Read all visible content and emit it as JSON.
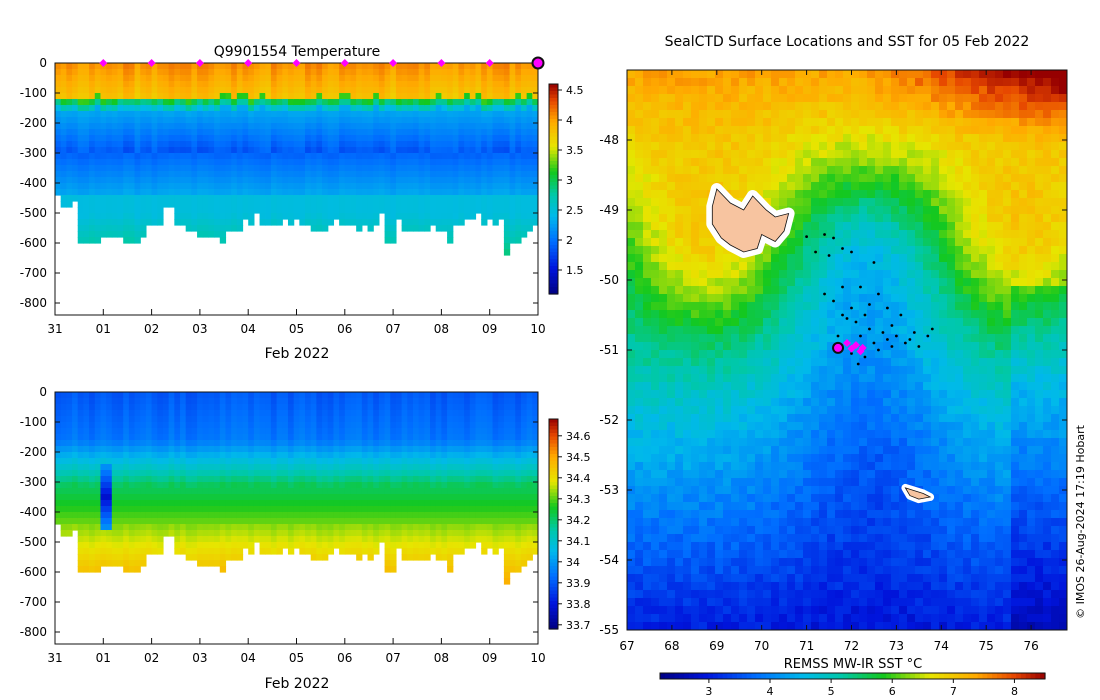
{
  "chart_data": [
    {
      "type": "heatmap",
      "id": "temperature-section",
      "title": "Q9901554  Temperature",
      "xlabel": "Feb 2022",
      "ylabel": "",
      "x_ticks": [
        "31",
        "01",
        "02",
        "03",
        "04",
        "05",
        "06",
        "07",
        "08",
        "09",
        "10"
      ],
      "x_range_days": [
        0,
        10
      ],
      "y_ticks": [
        0,
        -100,
        -200,
        -300,
        -400,
        -500,
        -600,
        -700,
        -800
      ],
      "ylim": [
        -840,
        0
      ],
      "colorbar": {
        "ticks": [
          "1.5",
          "2",
          "2.5",
          "3",
          "3.5",
          "4",
          "4.5"
        ],
        "ticks_values": [
          1.5,
          2,
          2.5,
          3,
          3.5,
          4,
          4.5
        ],
        "range": [
          1.1,
          4.6
        ]
      },
      "surface_markers_days": [
        1,
        2,
        3,
        4,
        5,
        6,
        7,
        8,
        9
      ],
      "latest_marker_day": 10,
      "profile_max_depth": [
        440,
        480,
        470,
        460,
        585,
        583,
        584,
        585,
        570,
        563,
        570,
        563,
        590,
        597,
        600,
        563,
        530,
        530,
        530,
        480,
        463,
        533,
        533,
        558,
        545,
        580,
        577,
        580,
        580,
        600,
        543,
        545,
        545,
        520,
        525,
        500,
        527,
        530,
        532,
        533,
        515,
        535,
        520,
        533,
        525,
        545,
        545,
        555,
        532,
        520,
        525,
        535,
        530,
        545,
        525,
        545,
        525,
        500,
        585,
        590,
        510,
        560,
        555,
        560,
        555,
        560,
        535,
        545,
        555,
        590,
        530,
        525,
        515,
        520,
        500,
        535,
        510,
        530,
        520,
        640,
        585,
        600,
        580,
        550,
        525
      ]
    },
    {
      "type": "heatmap",
      "id": "salinity-section",
      "title": "",
      "xlabel": "Feb 2022",
      "x_ticks": [
        "31",
        "01",
        "02",
        "03",
        "04",
        "05",
        "06",
        "07",
        "08",
        "09",
        "10"
      ],
      "y_ticks": [
        0,
        -100,
        -200,
        -300,
        -400,
        -500,
        -600,
        -700,
        -800
      ],
      "ylim": [
        -840,
        0
      ],
      "colorbar": {
        "ticks": [
          "33.7",
          "33.8",
          "33.9",
          "34",
          "34.1",
          "34.2",
          "34.3",
          "34.4",
          "34.5",
          "34.6"
        ],
        "ticks_values": [
          33.7,
          33.8,
          33.9,
          34.0,
          34.1,
          34.2,
          34.3,
          34.4,
          34.5,
          34.6
        ],
        "range": [
          33.68,
          34.68
        ]
      }
    },
    {
      "type": "heatmap",
      "id": "sst-map",
      "title": "SealCTD Surface Locations and SST for 05 Feb 2022",
      "xlabel": "REMSS MW-IR SST °C",
      "x_ticks": [
        "67",
        "68",
        "69",
        "70",
        "71",
        "72",
        "73",
        "74",
        "75",
        "76"
      ],
      "x_tick_values": [
        67,
        68,
        69,
        70,
        71,
        72,
        73,
        74,
        75,
        76
      ],
      "xlim": [
        67,
        76.8
      ],
      "y_ticks": [
        "-48",
        "-49",
        "-50",
        "-51",
        "-52",
        "-53",
        "-54",
        "-55"
      ],
      "y_tick_values": [
        -48,
        -49,
        -50,
        -51,
        -52,
        -53,
        -54,
        -55
      ],
      "ylim": [
        -55,
        -47
      ],
      "colorbar": {
        "ticks": [
          "3",
          "4",
          "5",
          "6",
          "7",
          "8"
        ],
        "ticks_values": [
          3,
          4,
          5,
          6,
          7,
          8
        ],
        "range": [
          2.2,
          8.5
        ]
      },
      "current_position": {
        "lon": 71.7,
        "lat": -50.97
      },
      "recent_positions": [
        [
          71.9,
          -50.9
        ],
        [
          72.1,
          -50.93
        ],
        [
          72.25,
          -50.97
        ],
        [
          72.0,
          -50.98
        ],
        [
          72.2,
          -51.02
        ]
      ],
      "track_points": [
        [
          71.0,
          -49.38
        ],
        [
          71.4,
          -49.35
        ],
        [
          71.6,
          -49.4
        ],
        [
          71.8,
          -49.55
        ],
        [
          71.2,
          -49.6
        ],
        [
          71.5,
          -49.65
        ],
        [
          72.0,
          -49.6
        ],
        [
          72.5,
          -49.75
        ],
        [
          71.8,
          -50.1
        ],
        [
          72.2,
          -50.1
        ],
        [
          72.6,
          -50.2
        ],
        [
          71.4,
          -50.2
        ],
        [
          71.6,
          -50.3
        ],
        [
          72.0,
          -50.4
        ],
        [
          72.3,
          -50.5
        ],
        [
          72.8,
          -50.4
        ],
        [
          73.1,
          -50.5
        ],
        [
          71.8,
          -50.5
        ],
        [
          72.1,
          -50.6
        ],
        [
          72.4,
          -50.7
        ],
        [
          72.7,
          -50.75
        ],
        [
          73.0,
          -50.8
        ],
        [
          73.4,
          -50.75
        ],
        [
          73.7,
          -50.8
        ],
        [
          72.2,
          -50.8
        ],
        [
          72.5,
          -50.9
        ],
        [
          72.8,
          -50.85
        ],
        [
          73.2,
          -50.9
        ],
        [
          73.5,
          -50.95
        ],
        [
          73.8,
          -50.7
        ],
        [
          71.7,
          -50.8
        ],
        [
          72.0,
          -51.05
        ],
        [
          72.3,
          -51.1
        ],
        [
          72.15,
          -51.2
        ],
        [
          72.6,
          -51.0
        ],
        [
          72.9,
          -50.95
        ],
        [
          73.3,
          -50.85
        ],
        [
          71.9,
          -50.55
        ],
        [
          72.4,
          -50.35
        ],
        [
          72.9,
          -50.65
        ]
      ],
      "land_outline_kerguelen": [
        [
          69.0,
          -48.7
        ],
        [
          69.3,
          -48.9
        ],
        [
          69.6,
          -49.0
        ],
        [
          69.8,
          -48.8
        ],
        [
          70.1,
          -49.0
        ],
        [
          70.3,
          -49.1
        ],
        [
          70.6,
          -49.05
        ],
        [
          70.5,
          -49.3
        ],
        [
          70.3,
          -49.45
        ],
        [
          70.0,
          -49.35
        ],
        [
          69.9,
          -49.55
        ],
        [
          69.6,
          -49.6
        ],
        [
          69.3,
          -49.5
        ],
        [
          69.1,
          -49.4
        ],
        [
          68.9,
          -49.2
        ],
        [
          68.9,
          -48.95
        ]
      ],
      "land_outline_heard": [
        [
          73.2,
          -52.97
        ],
        [
          73.6,
          -53.05
        ],
        [
          73.75,
          -53.1
        ],
        [
          73.5,
          -53.13
        ],
        [
          73.3,
          -53.08
        ]
      ],
      "watermark": "© IMOS 26-Aug-2024 17:19 Hobart"
    }
  ]
}
